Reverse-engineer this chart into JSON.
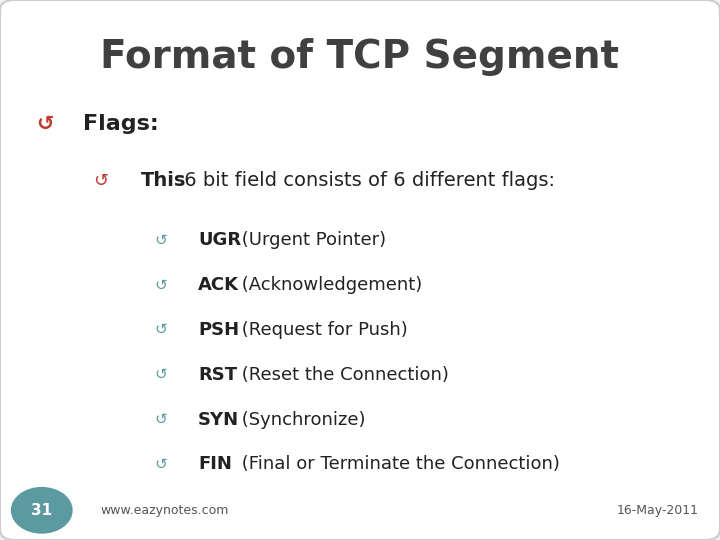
{
  "title": "Format of TCP Segment",
  "title_fontsize": 28,
  "title_color": "#404040",
  "title_weight": "bold",
  "bg_color": "#f0f0f0",
  "slide_bg": "#ffffff",
  "border_color": "#cccccc",
  "bullet_color_l1": "#c0392b",
  "bullet_color_l2": "#5b9aa0",
  "bullet_color_l3": "#5b9aa0",
  "text_color": "#333333",
  "bold_text_color": "#222222",
  "footer_color": "#555555",
  "circle_color": "#5b9aa0",
  "circle_text_color": "#ffffff",
  "slide_number": "31",
  "footer_left": "www.eazynotes.com",
  "footer_right": "16-May-2011",
  "level1": [
    {
      "bold": "Flags:",
      "rest": ""
    }
  ],
  "level2": [
    {
      "bold": "This",
      "rest": " 6 bit field consists of 6 different flags:"
    }
  ],
  "level3": [
    {
      "bold": "UGR",
      "rest": " (Urgent Pointer)"
    },
    {
      "bold": "ACK",
      "rest": " (Acknowledgement)"
    },
    {
      "bold": "PSH",
      "rest": " (Request for Push)"
    },
    {
      "bold": "RST",
      "rest": " (Reset the Connection)"
    },
    {
      "bold": "SYN",
      "rest": " (Synchronize)"
    },
    {
      "bold": "FIN",
      "rest": " (Final or Terminate the Connection)"
    }
  ],
  "font_family": "DejaVu Sans"
}
